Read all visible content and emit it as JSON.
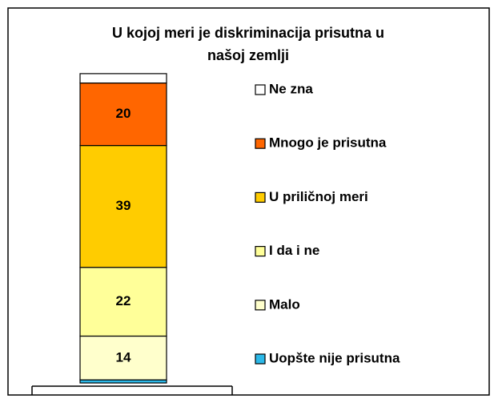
{
  "chart_data": {
    "type": "stacked_bar",
    "title": [
      "U kojoj meri je diskriminacija prisutna u",
      "našoj zemlji"
    ],
    "categories": [
      null
    ],
    "ylim": [
      0,
      100
    ],
    "legend": "right",
    "series": [
      {
        "name": "Uopšte nije prisutna",
        "color": "#2bb8e8",
        "values": [
          1
        ],
        "show_value": false
      },
      {
        "name": "Malo",
        "color": "#ffffcc",
        "values": [
          14
        ],
        "show_value": true
      },
      {
        "name": "I da i ne",
        "color": "#ffff99",
        "values": [
          22
        ],
        "show_value": true
      },
      {
        "name": "U priličnoj meri",
        "color": "#ffcc00",
        "values": [
          39
        ],
        "show_value": true
      },
      {
        "name": "Mnogo je prisutna",
        "color": "#ff6600",
        "values": [
          20
        ],
        "show_value": true
      },
      {
        "name": "Ne zna",
        "color": "#ffffff",
        "values": [
          3
        ],
        "show_value": false
      }
    ]
  }
}
